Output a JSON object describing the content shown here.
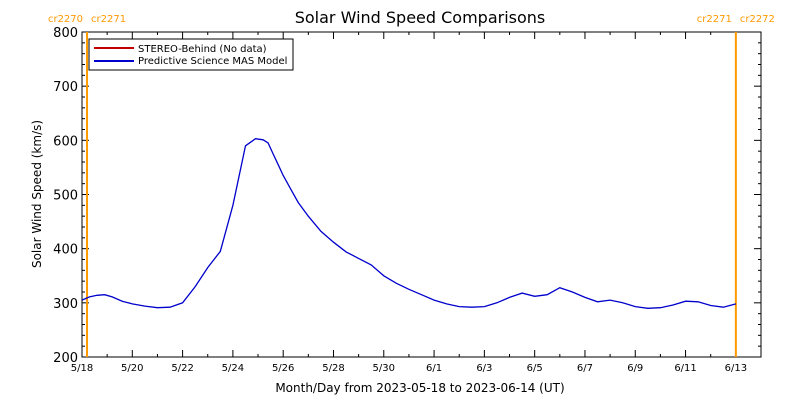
{
  "chart_data": {
    "type": "line",
    "title": "Solar Wind Speed Comparisons",
    "xlabel": "Month/Day from 2023-05-18 to 2023-06-14 (UT)",
    "ylabel": "Solar Wind Speed (km/s)",
    "ylim": [
      200,
      800
    ],
    "xlim_days": [
      0,
      27
    ],
    "y_ticks": [
      "200",
      "300",
      "400",
      "500",
      "600",
      "700",
      "800"
    ],
    "x_ticks": [
      "5/18",
      "5/20",
      "5/22",
      "5/24",
      "5/26",
      "5/28",
      "5/30",
      "6/1",
      "6/3",
      "6/5",
      "6/7",
      "6/9",
      "6/11",
      "6/13"
    ],
    "carrington_markers": [
      {
        "day": 0.2,
        "left_label": "cr2270",
        "right_label": "cr2271"
      },
      {
        "day": 26.0,
        "left_label": "cr2271",
        "right_label": "cr2272"
      }
    ],
    "legend_position": "top-left",
    "series": [
      {
        "name": "STEREO-Behind (No data)",
        "color": "#c00000",
        "x": [],
        "y": []
      },
      {
        "name": "Predictive Science MAS Model",
        "color": "#0000cc",
        "x": [
          0.0,
          0.3,
          0.6,
          0.9,
          1.2,
          1.6,
          2.0,
          2.5,
          3.0,
          3.5,
          4.0,
          4.5,
          5.0,
          5.5,
          6.0,
          6.5,
          6.9,
          7.2,
          7.4,
          7.6,
          7.8,
          8.0,
          8.3,
          8.6,
          9.0,
          9.5,
          10.0,
          10.5,
          11.0,
          11.5,
          12.0,
          12.5,
          13.0,
          13.5,
          14.0,
          14.5,
          15.0,
          15.5,
          16.0,
          16.5,
          17.0,
          17.5,
          18.0,
          18.5,
          19.0,
          19.5,
          20.0,
          20.5,
          21.0,
          21.5,
          22.0,
          22.5,
          23.0,
          23.5,
          24.0,
          24.5,
          25.0,
          25.5,
          26.0
        ],
        "y": [
          305,
          311,
          314,
          315,
          311,
          303,
          298,
          294,
          291,
          292,
          300,
          330,
          365,
          395,
          480,
          590,
          603,
          601,
          595,
          575,
          555,
          535,
          510,
          485,
          460,
          432,
          412,
          394,
          382,
          370,
          350,
          336,
          325,
          315,
          305,
          298,
          293,
          292,
          293,
          300,
          310,
          318,
          312,
          315,
          328,
          320,
          310,
          302,
          305,
          300,
          293,
          290,
          291,
          296,
          303,
          302,
          295,
          292,
          298
        ]
      }
    ]
  }
}
